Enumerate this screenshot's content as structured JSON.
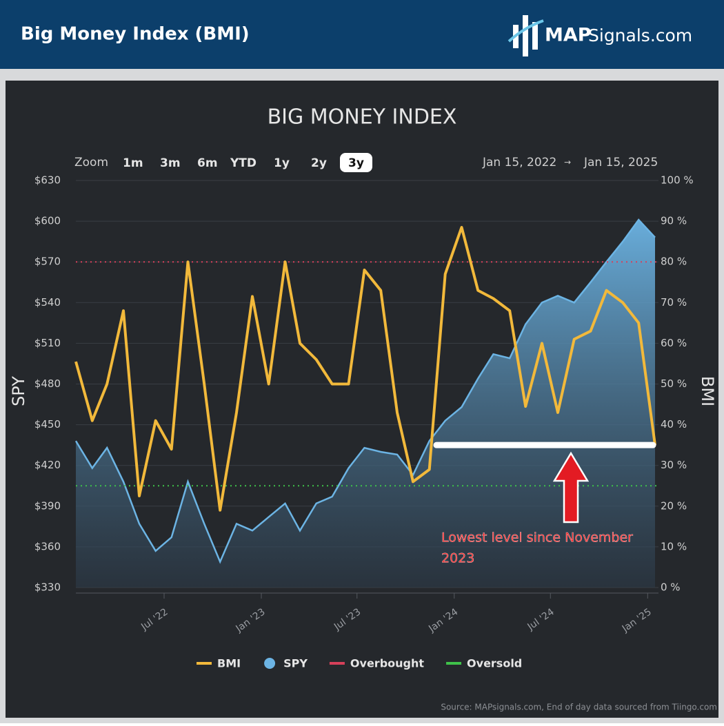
{
  "header": {
    "title": "Big Money Index (BMI)",
    "logo_bold": "MAP",
    "logo_rest": "Signals.com"
  },
  "controls": {
    "zoom_label": "Zoom",
    "buttons": [
      "1m",
      "3m",
      "6m",
      "YTD",
      "1y",
      "2y",
      "3y"
    ],
    "selected": "3y",
    "range_from": "Jan 15, 2022",
    "range_arrow": "→",
    "range_to": "Jan 15, 2025"
  },
  "chart_data": {
    "type": "line",
    "title": "BIG MONEY INDEX",
    "y_label": "SPY",
    "y2_label": "BMI",
    "x": [
      "2022-01-15",
      "2022-02-15",
      "2022-03-15",
      "2022-04-15",
      "2022-05-15",
      "2022-06-15",
      "2022-07-15",
      "2022-08-15",
      "2022-09-15",
      "2022-10-15",
      "2022-11-15",
      "2022-12-15",
      "2023-01-15",
      "2023-02-15",
      "2023-03-15",
      "2023-04-15",
      "2023-05-15",
      "2023-06-15",
      "2023-07-15",
      "2023-08-15",
      "2023-09-15",
      "2023-10-15",
      "2023-11-15",
      "2023-12-15",
      "2024-01-15",
      "2024-02-15",
      "2024-03-15",
      "2024-04-15",
      "2024-05-15",
      "2024-06-15",
      "2024-07-15",
      "2024-08-15",
      "2024-09-15",
      "2024-10-15",
      "2024-11-15",
      "2024-12-15",
      "2025-01-15"
    ],
    "xlim": [
      "2022-01-15",
      "2025-01-15"
    ],
    "xticks": [
      {
        "value": "2022-07",
        "label": "Jul '22"
      },
      {
        "value": "2023-01",
        "label": "Jan '23"
      },
      {
        "value": "2023-07",
        "label": "Jul '23"
      },
      {
        "value": "2024-01",
        "label": "Jan '24"
      },
      {
        "value": "2024-07",
        "label": "Jul '24"
      },
      {
        "value": "2025-01",
        "label": "Jan '25"
      }
    ],
    "series": [
      {
        "name": "BMI",
        "color": "#f2b93b",
        "axis": "y2",
        "values": [
          55.5,
          41,
          50,
          68,
          22.5,
          41,
          34,
          80,
          50,
          19,
          43,
          71.5,
          50,
          80,
          60,
          56,
          50,
          50,
          78,
          73,
          43,
          26,
          29,
          77,
          88.5,
          73,
          71,
          68,
          44.5,
          60,
          43,
          61,
          63,
          73,
          70,
          65,
          35
        ]
      },
      {
        "name": "SPY",
        "color": "#6cb4e4",
        "axis": "y",
        "values": [
          438,
          418,
          433,
          408,
          377,
          357,
          367,
          408,
          377,
          349,
          377,
          372,
          382,
          392,
          372,
          392,
          397,
          418,
          433,
          430,
          428,
          413,
          438,
          453,
          463,
          484,
          502,
          499,
          524,
          540,
          545,
          540,
          555,
          570,
          585,
          601,
          588
        ]
      }
    ],
    "thresholds": [
      {
        "name": "Overbought",
        "color": "#d6405a",
        "value": 80
      },
      {
        "name": "Oversold",
        "color": "#3fc24a",
        "value": 25
      }
    ],
    "ylim": [
      330,
      630
    ],
    "yticks": [
      {
        "value": 330,
        "label": "$330"
      },
      {
        "value": 360,
        "label": "$360"
      },
      {
        "value": 390,
        "label": "$390"
      },
      {
        "value": 420,
        "label": "$420"
      },
      {
        "value": 450,
        "label": "$450"
      },
      {
        "value": 480,
        "label": "$480"
      },
      {
        "value": 510,
        "label": "$510"
      },
      {
        "value": 540,
        "label": "$540"
      },
      {
        "value": 570,
        "label": "$570"
      },
      {
        "value": 600,
        "label": "$600"
      },
      {
        "value": 630,
        "label": "$630"
      }
    ],
    "y2lim": [
      0,
      100
    ],
    "y2ticks": [
      {
        "value": 0,
        "label": "0 %"
      },
      {
        "value": 10,
        "label": "10 %"
      },
      {
        "value": 20,
        "label": "20 %"
      },
      {
        "value": 30,
        "label": "30 %"
      },
      {
        "value": 40,
        "label": "40 %"
      },
      {
        "value": 50,
        "label": "50 %"
      },
      {
        "value": 60,
        "label": "60 %"
      },
      {
        "value": 70,
        "label": "70 %"
      },
      {
        "value": 80,
        "label": "80 %"
      },
      {
        "value": 90,
        "label": "90 %"
      },
      {
        "value": 100,
        "label": "100 %"
      }
    ],
    "grid": true,
    "annotation": {
      "text_line1": "Lowest level since November",
      "text_line2": "2023",
      "level": 35
    },
    "source": "Source: MAPsignals.com, End of day data sourced from Tiingo.com"
  }
}
